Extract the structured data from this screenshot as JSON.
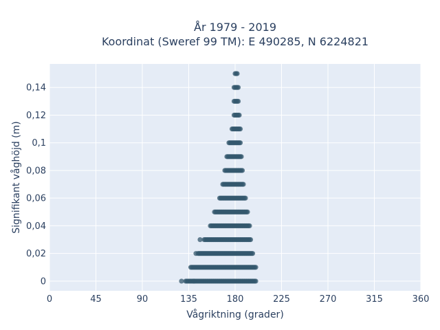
{
  "chart_data": {
    "type": "scatter",
    "title_lines": [
      "År 1979 - 2019",
      "Koordinat (Sweref 99 TM): E 490285, N 6224821"
    ],
    "xlabel": "Vågriktning (grader)",
    "ylabel": "Signifikant våghöjd (m)",
    "xlim": [
      0,
      360
    ],
    "ylim": [
      -0.007,
      0.157
    ],
    "x_ticks": [
      0,
      45,
      90,
      135,
      180,
      225,
      270,
      315,
      360
    ],
    "x_tick_labels": [
      "0",
      "45",
      "90",
      "135",
      "180",
      "225",
      "270",
      "315",
      "360"
    ],
    "y_ticks": [
      0,
      0.02,
      0.04,
      0.06,
      0.08,
      0.1,
      0.12,
      0.14
    ],
    "y_tick_labels": [
      "0",
      "0,02",
      "0,04",
      "0,06",
      "0,08",
      "0,1",
      "0,12",
      "0,14"
    ],
    "grid": true,
    "colors": {
      "marker": "#34586e",
      "plot_bg": "#e5ecf6",
      "grid": "#ffffff",
      "text": "#2a3f5f"
    },
    "bands": [
      {
        "y": 0.0,
        "x_min": 132,
        "x_max": 200,
        "outliers": [
          128,
          140
        ]
      },
      {
        "y": 0.01,
        "x_min": 137,
        "x_max": 200,
        "outliers": []
      },
      {
        "y": 0.02,
        "x_min": 144,
        "x_max": 197,
        "outliers": [
          142
        ]
      },
      {
        "y": 0.03,
        "x_min": 150,
        "x_max": 195,
        "outliers": [
          146
        ]
      },
      {
        "y": 0.04,
        "x_min": 156,
        "x_max": 194,
        "outliers": []
      },
      {
        "y": 0.05,
        "x_min": 160,
        "x_max": 192,
        "outliers": []
      },
      {
        "y": 0.06,
        "x_min": 165,
        "x_max": 190,
        "outliers": []
      },
      {
        "y": 0.07,
        "x_min": 168,
        "x_max": 188,
        "outliers": []
      },
      {
        "y": 0.08,
        "x_min": 170,
        "x_max": 187,
        "outliers": []
      },
      {
        "y": 0.09,
        "x_min": 172,
        "x_max": 186,
        "outliers": []
      },
      {
        "y": 0.1,
        "x_min": 174,
        "x_max": 185,
        "outliers": []
      },
      {
        "y": 0.11,
        "x_min": 177,
        "x_max": 185,
        "outliers": []
      },
      {
        "y": 0.12,
        "x_min": 179,
        "x_max": 184,
        "outliers": []
      },
      {
        "y": 0.13,
        "x_min": 179,
        "x_max": 183,
        "outliers": []
      },
      {
        "y": 0.14,
        "x_min": 179,
        "x_max": 183,
        "outliers": []
      },
      {
        "y": 0.15,
        "x_min": 180,
        "x_max": 182,
        "outliers": []
      }
    ]
  }
}
